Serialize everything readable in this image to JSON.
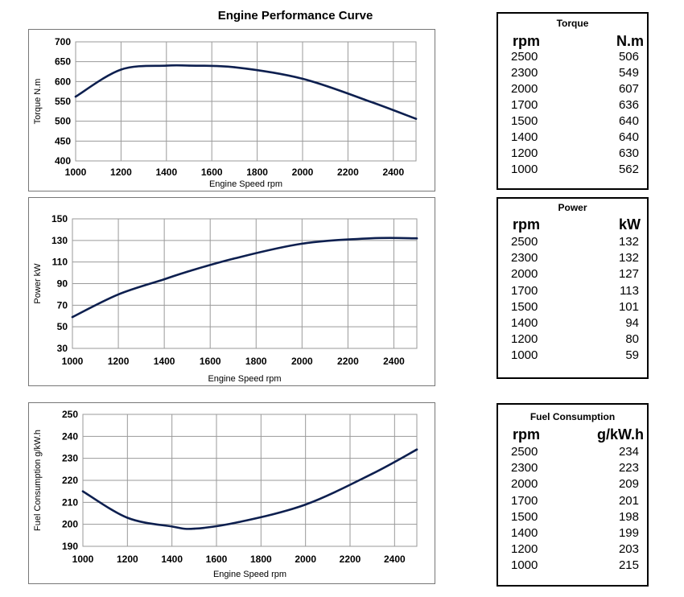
{
  "title": "Engine Performance Curve",
  "chart_data": [
    {
      "type": "line",
      "xlabel": "Engine Speed rpm",
      "ylabel": "Torque N.m",
      "xlim": [
        1000,
        2500
      ],
      "ylim": [
        400,
        700
      ],
      "xticks": [
        1000,
        1200,
        1400,
        1600,
        1800,
        2000,
        2200,
        2400
      ],
      "yticks": [
        400,
        450,
        500,
        550,
        600,
        650,
        700
      ],
      "grid": true,
      "series": [
        {
          "x": [
            1000,
            1200,
            1400,
            1500,
            1700,
            2000,
            2300,
            2500
          ],
          "y": [
            562,
            630,
            640,
            640,
            636,
            607,
            549,
            506
          ]
        }
      ]
    },
    {
      "type": "line",
      "xlabel": "Engine Speed rpm",
      "ylabel": "Power kW",
      "xlim": [
        1000,
        2500
      ],
      "ylim": [
        30,
        150
      ],
      "xticks": [
        1000,
        1200,
        1400,
        1600,
        1800,
        2000,
        2200,
        2400
      ],
      "yticks": [
        30,
        50,
        70,
        90,
        110,
        130,
        150
      ],
      "grid": true,
      "series": [
        {
          "x": [
            1000,
            1200,
            1400,
            1500,
            1700,
            2000,
            2300,
            2500
          ],
          "y": [
            59,
            80,
            94,
            101,
            113,
            127,
            132,
            132
          ]
        }
      ]
    },
    {
      "type": "line",
      "xlabel": "Engine Speed rpm",
      "ylabel": "Fuel Consumption g/kW.h",
      "xlim": [
        1000,
        2500
      ],
      "ylim": [
        190,
        250
      ],
      "xticks": [
        1000,
        1200,
        1400,
        1600,
        1800,
        2000,
        2200,
        2400
      ],
      "yticks": [
        190,
        200,
        210,
        220,
        230,
        240,
        250
      ],
      "grid": true,
      "series": [
        {
          "x": [
            1000,
            1200,
            1400,
            1500,
            1700,
            2000,
            2300,
            2500
          ],
          "y": [
            215,
            203,
            199,
            198,
            201,
            209,
            223,
            234
          ]
        }
      ]
    }
  ],
  "tables": [
    {
      "title": "Torque",
      "col1": "rpm",
      "col2": "N.m",
      "rows": [
        [
          "2500",
          "506"
        ],
        [
          "2300",
          "549"
        ],
        [
          "2000",
          "607"
        ],
        [
          "1700",
          "636"
        ],
        [
          "1500",
          "640"
        ],
        [
          "1400",
          "640"
        ],
        [
          "1200",
          "630"
        ],
        [
          "1000",
          "562"
        ]
      ]
    },
    {
      "title": "Power",
      "col1": "rpm",
      "col2": "kW",
      "rows": [
        [
          "2500",
          "132"
        ],
        [
          "2300",
          "132"
        ],
        [
          "2000",
          "127"
        ],
        [
          "1700",
          "113"
        ],
        [
          "1500",
          "101"
        ],
        [
          "1400",
          "94"
        ],
        [
          "1200",
          "80"
        ],
        [
          "1000",
          "59"
        ]
      ]
    },
    {
      "title": "Fuel Consumption",
      "col1": "rpm",
      "col2": "g/kW.h",
      "rows": [
        [
          "2500",
          "234"
        ],
        [
          "2300",
          "223"
        ],
        [
          "2000",
          "209"
        ],
        [
          "1700",
          "201"
        ],
        [
          "1500",
          "198"
        ],
        [
          "1400",
          "199"
        ],
        [
          "1200",
          "203"
        ],
        [
          "1000",
          "215"
        ]
      ]
    }
  ],
  "colors": {
    "line": "#0d1f4f",
    "grid": "#9a9a9a",
    "border": "#777777"
  }
}
